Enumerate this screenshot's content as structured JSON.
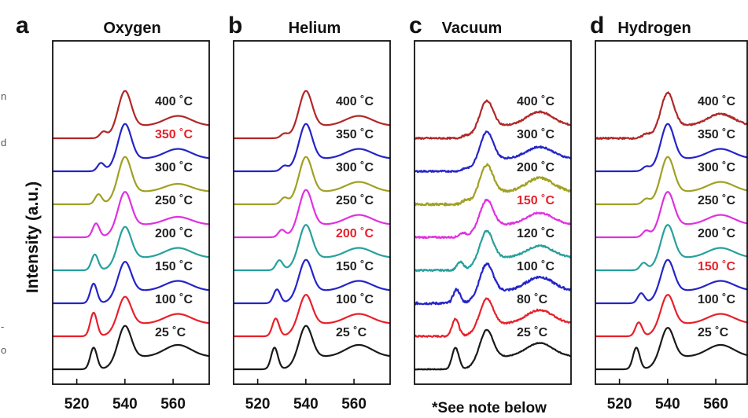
{
  "figure": {
    "ylabel": "Intensity (a.u.)",
    "note": "*See note below",
    "side_fragments": [
      "n",
      "d",
      "-",
      "o"
    ]
  },
  "colors": {
    "label_default": "#222222",
    "label_highlight": "#e8202a",
    "series": {
      "25": "#1a1a1a",
      "80": "#e8202a",
      "100": "#2424c8",
      "120": "#27a09c",
      "150": "#2424c8",
      "200": "#e030e0",
      "250": "#e030e0",
      "300": "#a0a024",
      "350": "#2424c8",
      "400": "#b02828"
    }
  },
  "chart_data": [
    {
      "type": "line",
      "panel": "a",
      "title": "Oxygen",
      "xlim": [
        510,
        575
      ],
      "xticks": [
        520,
        540,
        560
      ],
      "ylabel": "Intensity (a.u.)",
      "series": [
        {
          "name": "25 °C",
          "label": "25 ˚C",
          "temp": 25,
          "color": "#1a1a1a",
          "highlight": false,
          "peaks": [
            [
              527,
              0.55
            ],
            [
              540,
              0.8
            ],
            [
              562,
              0.3
            ]
          ]
        },
        {
          "name": "100 °C",
          "label": "100 ˚C",
          "temp": 100,
          "color": "#e8202a",
          "highlight": false,
          "peaks": [
            [
              527,
              0.6
            ],
            [
              540,
              0.7
            ],
            [
              562,
              0.25
            ]
          ]
        },
        {
          "name": "150 °C",
          "label": "150 ˚C",
          "temp": 150,
          "color": "#2424c8",
          "highlight": false,
          "peaks": [
            [
              527,
              0.5
            ],
            [
              540,
              0.75
            ],
            [
              562,
              0.25
            ]
          ]
        },
        {
          "name": "200 °C",
          "label": "200 ˚C",
          "temp": 200,
          "color": "#27a09c",
          "highlight": false,
          "peaks": [
            [
              527.5,
              0.4
            ],
            [
              540,
              0.8
            ],
            [
              562,
              0.25
            ]
          ]
        },
        {
          "name": "250 °C",
          "label": "250 ˚C",
          "temp": 250,
          "color": "#e030e0",
          "highlight": false,
          "peaks": [
            [
              528,
              0.35
            ],
            [
              540,
              0.85
            ],
            [
              562,
              0.2
            ]
          ]
        },
        {
          "name": "300 °C",
          "label": "300 ˚C",
          "temp": 300,
          "color": "#a0a024",
          "highlight": false,
          "peaks": [
            [
              529,
              0.25
            ],
            [
              540,
              0.9
            ],
            [
              562,
              0.2
            ]
          ]
        },
        {
          "name": "350 °C",
          "label": "350 ˚C",
          "temp": 350,
          "color": "#2424c8",
          "highlight": true,
          "peaks": [
            [
              530,
              0.2
            ],
            [
              540,
              0.9
            ],
            [
              562,
              0.25
            ]
          ]
        },
        {
          "name": "400 °C",
          "label": "400 ˚C",
          "temp": 400,
          "color": "#b02828",
          "highlight": false,
          "peaks": [
            [
              531,
              0.15
            ],
            [
              540,
              0.9
            ],
            [
              562,
              0.25
            ]
          ]
        }
      ]
    },
    {
      "type": "line",
      "panel": "b",
      "title": "Helium",
      "xlim": [
        510,
        575
      ],
      "xticks": [
        520,
        540,
        560
      ],
      "series": [
        {
          "name": "25 °C",
          "label": "25 ˚C",
          "temp": 25,
          "color": "#1a1a1a",
          "highlight": false,
          "peaks": [
            [
              527,
              0.55
            ],
            [
              540,
              0.8
            ],
            [
              562,
              0.3
            ]
          ]
        },
        {
          "name": "100 °C",
          "label": "100 ˚C",
          "temp": 100,
          "color": "#e8202a",
          "highlight": false,
          "peaks": [
            [
              527.5,
              0.45
            ],
            [
              540,
              0.75
            ],
            [
              562,
              0.25
            ]
          ]
        },
        {
          "name": "150 °C",
          "label": "150 ˚C",
          "temp": 150,
          "color": "#2424c8",
          "highlight": false,
          "peaks": [
            [
              528,
              0.35
            ],
            [
              540,
              0.8
            ],
            [
              562,
              0.25
            ]
          ]
        },
        {
          "name": "200 °C",
          "label": "200 ˚C",
          "temp": 200,
          "color": "#27a09c",
          "highlight": true,
          "peaks": [
            [
              529,
              0.25
            ],
            [
              540,
              0.85
            ],
            [
              562,
              0.25
            ]
          ]
        },
        {
          "name": "250 °C",
          "label": "250 ˚C",
          "temp": 250,
          "color": "#e030e0",
          "highlight": false,
          "peaks": [
            [
              530,
              0.18
            ],
            [
              540,
              0.9
            ],
            [
              562,
              0.25
            ]
          ]
        },
        {
          "name": "300 °C",
          "label": "300 ˚C",
          "temp": 300,
          "color": "#a0a024",
          "highlight": false,
          "peaks": [
            [
              531,
              0.15
            ],
            [
              540,
              0.9
            ],
            [
              562,
              0.25
            ]
          ]
        },
        {
          "name": "350 °C",
          "label": "350 ˚C",
          "temp": 350,
          "color": "#2424c8",
          "highlight": false,
          "peaks": [
            [
              531,
              0.12
            ],
            [
              540,
              0.9
            ],
            [
              562,
              0.25
            ]
          ]
        },
        {
          "name": "400 °C",
          "label": "400 ˚C",
          "temp": 400,
          "color": "#b02828",
          "highlight": false,
          "peaks": [
            [
              531,
              0.1
            ],
            [
              540,
              0.9
            ],
            [
              562,
              0.25
            ]
          ]
        }
      ]
    },
    {
      "type": "line",
      "panel": "c",
      "title": "Vacuum",
      "xlim": [
        510,
        575
      ],
      "xticks": [],
      "series": [
        {
          "name": "25 °C",
          "label": "25 ˚C",
          "temp": 25,
          "color": "#1a1a1a",
          "highlight": false,
          "noise": 0.01,
          "peaks": [
            [
              527,
              0.55
            ],
            [
              540,
              0.7
            ],
            [
              562,
              0.35
            ]
          ]
        },
        {
          "name": "80 °C",
          "label": "80 ˚C",
          "temp": 80,
          "color": "#e8202a",
          "highlight": false,
          "noise": 0.02,
          "peaks": [
            [
              527,
              0.45
            ],
            [
              540,
              0.65
            ],
            [
              562,
              0.35
            ]
          ]
        },
        {
          "name": "100 °C",
          "label": "100 ˚C",
          "temp": 100,
          "color": "#2424c8",
          "highlight": false,
          "noise": 0.03,
          "peaks": [
            [
              527.5,
              0.35
            ],
            [
              540,
              0.7
            ],
            [
              562,
              0.35
            ]
          ]
        },
        {
          "name": "120 °C",
          "label": "120 ˚C",
          "temp": 120,
          "color": "#27a09c",
          "highlight": false,
          "noise": 0.02,
          "peaks": [
            [
              529,
              0.2
            ],
            [
              540,
              0.7
            ],
            [
              562,
              0.3
            ]
          ]
        },
        {
          "name": "150 °C",
          "label": "150 ˚C",
          "temp": 150,
          "color": "#e030e0",
          "highlight": true,
          "noise": 0.02,
          "peaks": [
            [
              530,
              0.1
            ],
            [
              540,
              0.65
            ],
            [
              562,
              0.3
            ]
          ]
        },
        {
          "name": "200 °C",
          "label": "200 ˚C",
          "temp": 200,
          "color": "#a0a024",
          "highlight": false,
          "noise": 0.03,
          "peaks": [
            [
              531,
              0.08
            ],
            [
              540,
              0.7
            ],
            [
              562,
              0.35
            ]
          ]
        },
        {
          "name": "300 °C",
          "label": "300 ˚C",
          "temp": 300,
          "color": "#2424c8",
          "highlight": false,
          "noise": 0.02,
          "peaks": [
            [
              531,
              0.05
            ],
            [
              540,
              0.7
            ],
            [
              562,
              0.3
            ]
          ]
        },
        {
          "name": "400 °C",
          "label": "400 ˚C",
          "temp": 400,
          "color": "#b02828",
          "highlight": false,
          "noise": 0.02,
          "peaks": [
            [
              531,
              0.05
            ],
            [
              540,
              0.65
            ],
            [
              562,
              0.35
            ]
          ]
        }
      ]
    },
    {
      "type": "line",
      "panel": "d",
      "title": "Hydrogen",
      "xlim": [
        510,
        575
      ],
      "xticks": [
        520,
        540,
        560
      ],
      "series": [
        {
          "name": "25 °C",
          "label": "25 ˚C",
          "temp": 25,
          "color": "#1a1a1a",
          "highlight": false,
          "peaks": [
            [
              527,
              0.55
            ],
            [
              540,
              0.75
            ],
            [
              562,
              0.3
            ]
          ]
        },
        {
          "name": "100 °C",
          "label": "100 ˚C",
          "temp": 100,
          "color": "#e8202a",
          "highlight": false,
          "peaks": [
            [
              528,
              0.35
            ],
            [
              540,
              0.75
            ],
            [
              562,
              0.25
            ]
          ]
        },
        {
          "name": "150 °C",
          "label": "150 ˚C",
          "temp": 150,
          "color": "#2424c8",
          "highlight": true,
          "peaks": [
            [
              529,
              0.25
            ],
            [
              540,
              0.8
            ],
            [
              562,
              0.25
            ]
          ]
        },
        {
          "name": "200 °C",
          "label": "200 ˚C",
          "temp": 200,
          "color": "#27a09c",
          "highlight": false,
          "peaks": [
            [
              530,
              0.18
            ],
            [
              540,
              0.85
            ],
            [
              562,
              0.25
            ]
          ]
        },
        {
          "name": "250 °C",
          "label": "250 ˚C",
          "temp": 250,
          "color": "#e030e0",
          "highlight": false,
          "peaks": [
            [
              531,
              0.15
            ],
            [
              540,
              0.85
            ],
            [
              562,
              0.25
            ]
          ]
        },
        {
          "name": "300 °C",
          "label": "300 ˚C",
          "temp": 300,
          "color": "#a0a024",
          "highlight": false,
          "peaks": [
            [
              531,
              0.12
            ],
            [
              540,
              0.9
            ],
            [
              562,
              0.25
            ]
          ]
        },
        {
          "name": "350 °C",
          "label": "350 ˚C",
          "temp": 350,
          "color": "#2424c8",
          "highlight": false,
          "peaks": [
            [
              531,
              0.1
            ],
            [
              540,
              0.9
            ],
            [
              562,
              0.25
            ]
          ]
        },
        {
          "name": "400 °C",
          "label": "400 ˚C",
          "temp": 400,
          "color": "#b02828",
          "highlight": false,
          "noise": 0.02,
          "peaks": [
            [
              531,
              0.1
            ],
            [
              540,
              0.85
            ],
            [
              562,
              0.3
            ]
          ]
        }
      ]
    }
  ]
}
